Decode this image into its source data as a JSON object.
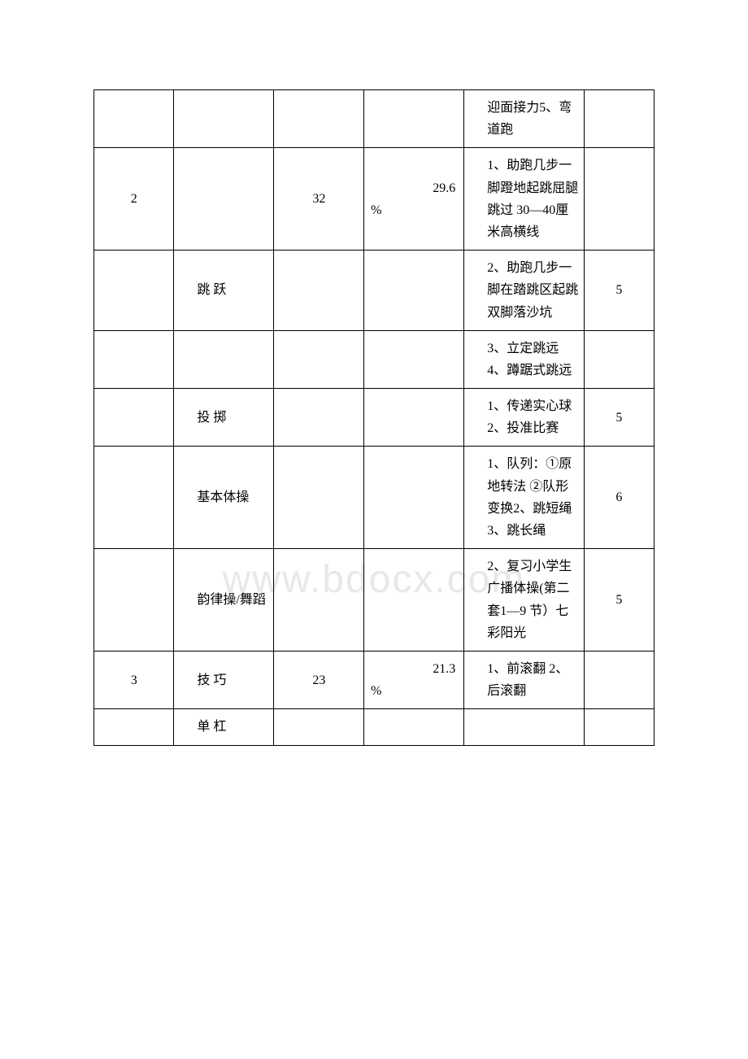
{
  "watermark": "www.bdocx.com",
  "rows": [
    {
      "c1": "",
      "c2": "",
      "c3": "",
      "c4_num": "",
      "c4_sym": "",
      "c5": "迎面接力5、弯道跑",
      "c6": ""
    },
    {
      "c1": "2",
      "c2": "",
      "c3": "32",
      "c4_num": "29.6",
      "c4_sym": "%",
      "c5": "1、助跑几步一脚蹬地起跳屈腿跳过 30—40厘米高横线",
      "c6": ""
    },
    {
      "c1": "",
      "c2": "跳 跃",
      "c3": "",
      "c4_num": "",
      "c4_sym": "",
      "c5": "2、助跑几步一脚在踏跳区起跳双脚落沙坑",
      "c6": "5"
    },
    {
      "c1": "",
      "c2": "",
      "c3": "",
      "c4_num": "",
      "c4_sym": "",
      "c5": "3、立定跳远 4、蹲踞式跳远",
      "c6": ""
    },
    {
      "c1": "",
      "c2": "投 掷",
      "c3": "",
      "c4_num": "",
      "c4_sym": "",
      "c5": "1、传递实心球2、投准比赛",
      "c6": "5"
    },
    {
      "c1": "",
      "c2": "基本体操",
      "c3": "",
      "c4_num": "",
      "c4_sym": "",
      "c5": "1、队列：①原地转法 ②队形变换2、跳短绳3、跳长绳",
      "c6": "6"
    },
    {
      "c1": "",
      "c2": "韵律操/舞蹈",
      "c3": "",
      "c4_num": "",
      "c4_sym": "",
      "c5": "2、复习小学生广播体操(第二套1—9 节）七彩阳光",
      "c6": "5"
    },
    {
      "c1": "3",
      "c2": "技 巧",
      "c3": "23",
      "c4_num": "21.3",
      "c4_sym": "%",
      "c5": "1、前滚翻 2、后滚翻",
      "c6": ""
    },
    {
      "c1": "",
      "c2": "单 杠",
      "c3": "",
      "c4_num": "",
      "c4_sym": "",
      "c5": "",
      "c6": ""
    }
  ]
}
